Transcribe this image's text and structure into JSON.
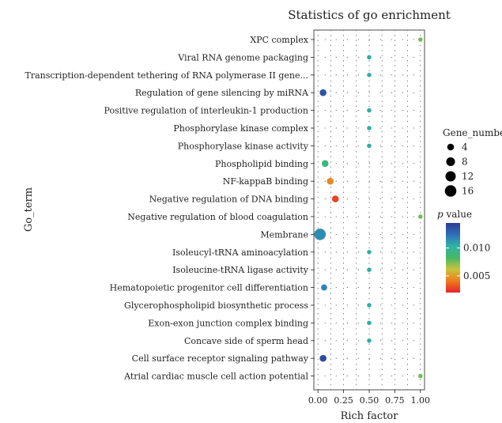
{
  "chart_data": {
    "type": "scatter",
    "title": "Statistics of go enrichment",
    "xlabel": "Rich factor",
    "ylabel": "Go_term",
    "xlim": [
      -0.04,
      1.04
    ],
    "xticks": [
      0,
      0.25,
      0.5,
      0.75,
      1
    ],
    "xtick_labels": [
      "0.00",
      "0.25",
      "0.50",
      "0.75",
      "1.00"
    ],
    "grid": "dotted",
    "categories": [
      "XPC complex",
      "Viral RNA genome packaging",
      "Transcription-dependent tethering of RNA polymerase II gene...",
      "Regulation of gene silencing by miRNA",
      "Positive regulation of interleukin-1 production",
      "Phosphorylase kinase complex",
      "Phosphorylase kinase activity",
      "Phospholipid binding",
      "NF-kappaB binding",
      "Negative regulation of DNA binding",
      "Negative regulation of blood coagulation",
      "Membrane",
      "Isoleucyl-tRNA aminoacylation",
      "Isoleucine-tRNA ligase activity",
      "Hematopoietic progenitor cell differentiation",
      "Glycerophospholipid biosynthetic process",
      "Exon-exon junction complex binding",
      "Concave side of sperm head",
      "Cell surface receptor signaling pathway",
      "Atrial cardiac muscle cell action potential"
    ],
    "points": [
      {
        "term": "XPC complex",
        "rich_factor": 1.0,
        "gene_number": 1,
        "p_value": 0.0075
      },
      {
        "term": "Viral RNA genome packaging",
        "rich_factor": 0.5,
        "gene_number": 1,
        "p_value": 0.0105
      },
      {
        "term": "Transcription-dependent tethering of RNA polymerase II gene...",
        "rich_factor": 0.5,
        "gene_number": 1,
        "p_value": 0.0105
      },
      {
        "term": "Regulation of gene silencing by miRNA",
        "rich_factor": 0.05,
        "gene_number": 4,
        "p_value": 0.0135
      },
      {
        "term": "Positive regulation of interleukin-1 production",
        "rich_factor": 0.5,
        "gene_number": 1,
        "p_value": 0.0105
      },
      {
        "term": "Phosphorylase kinase complex",
        "rich_factor": 0.5,
        "gene_number": 1,
        "p_value": 0.0105
      },
      {
        "term": "Phosphorylase kinase activity",
        "rich_factor": 0.5,
        "gene_number": 1,
        "p_value": 0.0105
      },
      {
        "term": "Phospholipid binding",
        "rich_factor": 0.07,
        "gene_number": 4,
        "p_value": 0.009
      },
      {
        "term": "NF-kappaB binding",
        "rich_factor": 0.12,
        "gene_number": 4,
        "p_value": 0.0045
      },
      {
        "term": "Negative regulation of DNA binding",
        "rich_factor": 0.17,
        "gene_number": 4,
        "p_value": 0.0028
      },
      {
        "term": "Negative regulation of blood coagulation",
        "rich_factor": 1.0,
        "gene_number": 1,
        "p_value": 0.0075
      },
      {
        "term": "Membrane",
        "rich_factor": 0.02,
        "gene_number": 16,
        "p_value": 0.0115
      },
      {
        "term": "Isoleucyl-tRNA aminoacylation",
        "rich_factor": 0.5,
        "gene_number": 1,
        "p_value": 0.0105
      },
      {
        "term": "Isoleucine-tRNA ligase activity",
        "rich_factor": 0.5,
        "gene_number": 1,
        "p_value": 0.0105
      },
      {
        "term": "Hematopoietic progenitor cell differentiation",
        "rich_factor": 0.06,
        "gene_number": 3,
        "p_value": 0.0118
      },
      {
        "term": "Glycerophospholipid biosynthetic process",
        "rich_factor": 0.5,
        "gene_number": 1,
        "p_value": 0.0105
      },
      {
        "term": "Exon-exon junction complex binding",
        "rich_factor": 0.5,
        "gene_number": 1,
        "p_value": 0.0105
      },
      {
        "term": "Concave side of sperm head",
        "rich_factor": 0.5,
        "gene_number": 1,
        "p_value": 0.0105
      },
      {
        "term": "Cell surface receptor signaling pathway",
        "rich_factor": 0.05,
        "gene_number": 4,
        "p_value": 0.0138
      },
      {
        "term": "Atrial cardiac muscle cell action potential",
        "rich_factor": 1.0,
        "gene_number": 1,
        "p_value": 0.0075
      }
    ],
    "size_legend": {
      "title": "Gene_number",
      "values": [
        4,
        8,
        12,
        16
      ],
      "labels": [
        "4",
        "8",
        "12",
        "16"
      ]
    },
    "color_legend": {
      "title_italic": "p",
      "title_rest": " value",
      "range": [
        0.002,
        0.0145
      ],
      "ticks": [
        0.005,
        0.01
      ],
      "tick_labels": [
        "0.005",
        "0.010"
      ],
      "colors": [
        "#e3242b",
        "#f07b1c",
        "#c9c43a",
        "#45b866",
        "#2fb3a8",
        "#2f6fb8",
        "#2e3c96"
      ]
    }
  }
}
